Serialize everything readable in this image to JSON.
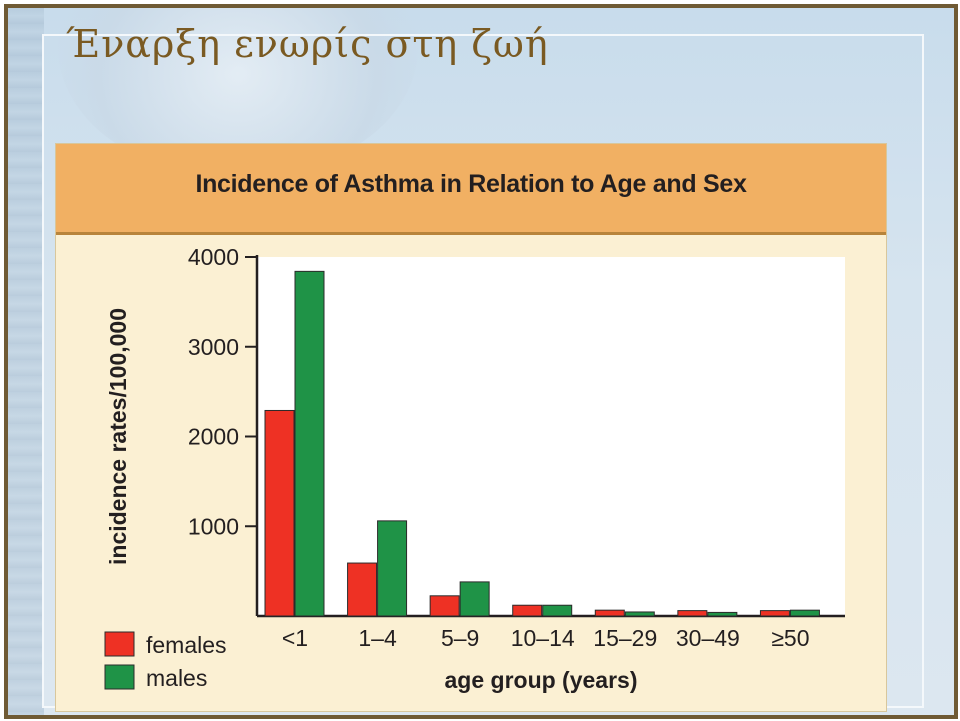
{
  "slide": {
    "title": "Έναρξη ενωρίς στη ζωή"
  },
  "chart_data": {
    "type": "bar",
    "title": "Incidence of Asthma in Relation to Age and Sex",
    "xlabel": "age group (years)",
    "ylabel": "incidence rates/100,000",
    "categories": [
      "<1",
      "1–4",
      "5–9",
      "10–14",
      "15–29",
      "30–49",
      "≥50"
    ],
    "series": [
      {
        "name": "females",
        "color": "#ee3124",
        "values": [
          2290,
          590,
          225,
          120,
          65,
          60,
          60
        ]
      },
      {
        "name": "males",
        "color": "#1f9347",
        "values": [
          3840,
          1060,
          380,
          120,
          45,
          40,
          65
        ]
      }
    ],
    "ylim": [
      0,
      4000
    ],
    "yticks": [
      1000,
      2000,
      3000,
      4000
    ],
    "ytick_labels": [
      "1000",
      "2000",
      "3000",
      "4000"
    ],
    "legend_position": "bottom-left",
    "grid": false
  }
}
